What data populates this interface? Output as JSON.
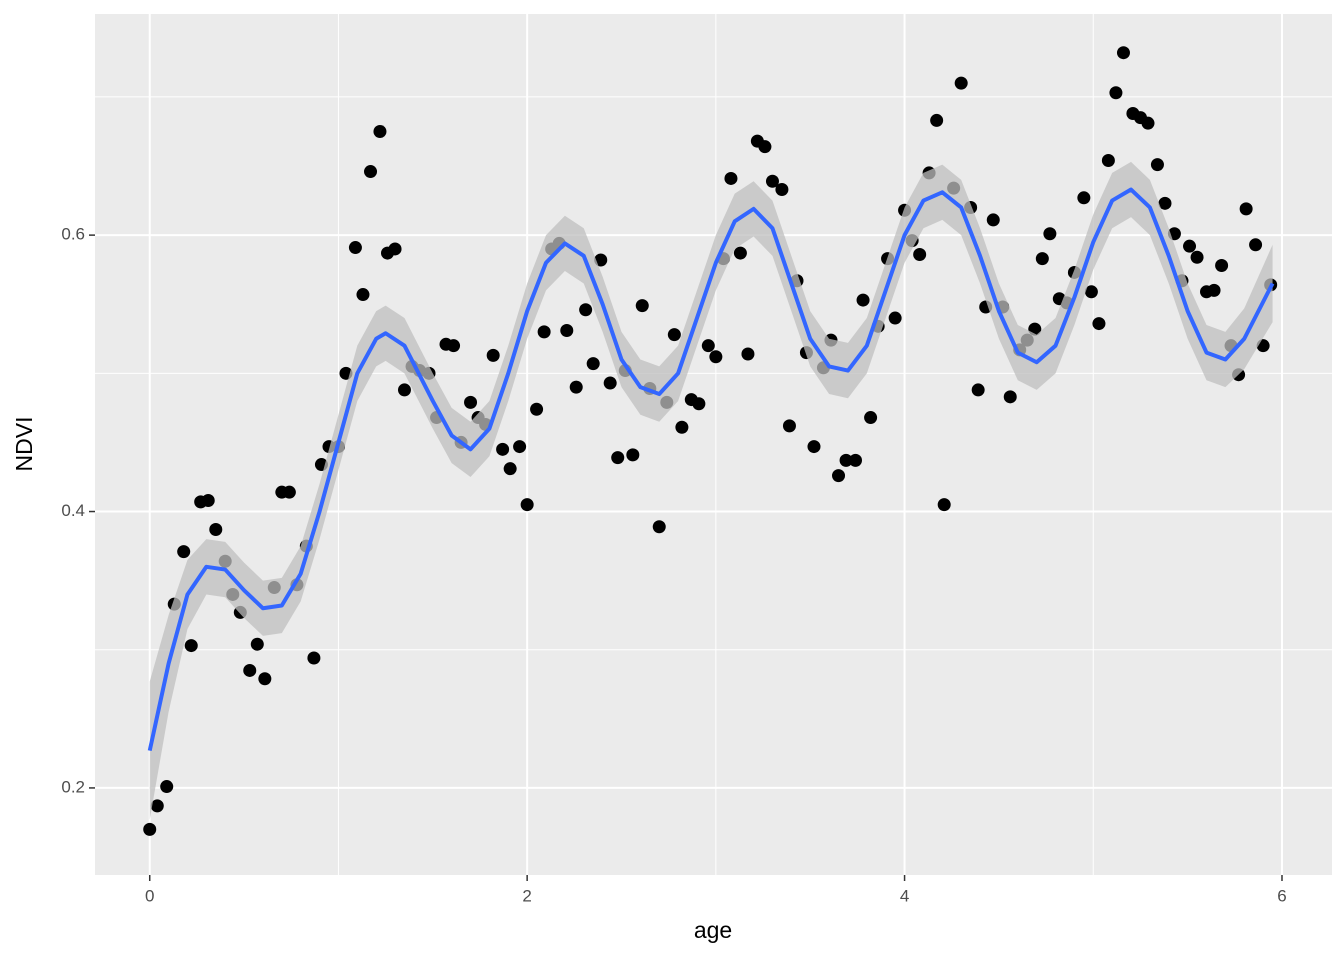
{
  "chart_data": {
    "type": "scatter",
    "x_label": "age",
    "y_label": "NDVI",
    "xlim": [
      -0.29,
      6.265
    ],
    "ylim": [
      0.137,
      0.76
    ],
    "xticks": [
      0,
      2,
      4,
      6
    ],
    "yticks": [
      0.2,
      0.4,
      0.6
    ],
    "xminor": [
      1,
      3,
      5
    ],
    "yminor": [
      0.3,
      0.5,
      0.7
    ],
    "grid": true,
    "color": "#000000",
    "x": [
      0,
      0.04,
      0.09,
      0.13,
      0.18,
      0.22,
      0.27,
      0.31,
      0.35,
      0.4,
      0.44,
      0.48,
      0.53,
      0.57,
      0.61,
      0.66,
      0.7,
      0.74,
      0.78,
      0.83,
      0.87,
      0.91,
      0.95,
      1.0,
      1.04,
      1.09,
      1.13,
      1.17,
      1.22,
      1.26,
      1.3,
      1.35,
      1.39,
      1.43,
      1.48,
      1.52,
      1.57,
      1.61,
      1.65,
      1.7,
      1.74,
      1.78,
      1.82,
      1.87,
      1.91,
      1.96,
      2.0,
      2.05,
      2.09,
      2.13,
      2.17,
      2.21,
      2.26,
      2.31,
      2.35,
      2.39,
      2.44,
      2.48,
      2.52,
      2.56,
      2.61,
      2.65,
      2.7,
      2.74,
      2.78,
      2.82,
      2.87,
      2.91,
      2.96,
      3.0,
      3.04,
      3.08,
      3.13,
      3.17,
      3.22,
      3.26,
      3.3,
      3.35,
      3.39,
      3.43,
      3.48,
      3.52,
      3.57,
      3.61,
      3.65,
      3.69,
      3.74,
      3.78,
      3.82,
      3.86,
      3.91,
      3.95,
      4.0,
      4.04,
      4.08,
      4.13,
      4.17,
      4.21,
      4.26,
      4.3,
      4.35,
      4.39,
      4.43,
      4.47,
      4.52,
      4.56,
      4.61,
      4.65,
      4.69,
      4.73,
      4.77,
      4.82,
      4.86,
      4.9,
      4.95,
      4.99,
      5.03,
      5.08,
      5.12,
      5.16,
      5.21,
      5.25,
      5.29,
      5.34,
      5.38,
      5.43,
      5.47,
      5.51,
      5.55,
      5.6,
      5.64,
      5.68,
      5.73,
      5.77,
      5.81,
      5.86,
      5.9,
      5.94
    ],
    "values": [
      0.17,
      0.187,
      0.201,
      0.333,
      0.371,
      0.303,
      0.407,
      0.408,
      0.387,
      0.364,
      0.34,
      0.327,
      0.285,
      0.304,
      0.279,
      0.345,
      0.414,
      0.414,
      0.347,
      0.375,
      0.294,
      0.434,
      0.447,
      0.447,
      0.5,
      0.591,
      0.557,
      0.646,
      0.675,
      0.587,
      0.59,
      0.488,
      0.505,
      0.502,
      0.5,
      0.468,
      0.521,
      0.52,
      0.45,
      0.479,
      0.468,
      0.463,
      0.513,
      0.445,
      0.431,
      0.447,
      0.405,
      0.474,
      0.53,
      0.59,
      0.594,
      0.531,
      0.49,
      0.546,
      0.507,
      0.582,
      0.493,
      0.439,
      0.502,
      0.441,
      0.549,
      0.489,
      0.389,
      0.479,
      0.528,
      0.461,
      0.481,
      0.478,
      0.52,
      0.512,
      0.583,
      0.641,
      0.587,
      0.514,
      0.668,
      0.664,
      0.639,
      0.633,
      0.462,
      0.567,
      0.515,
      0.447,
      0.504,
      0.524,
      0.426,
      0.437,
      0.437,
      0.553,
      0.468,
      0.534,
      0.583,
      0.54,
      0.618,
      0.596,
      0.586,
      0.645,
      0.683,
      0.405,
      0.634,
      0.71,
      0.62,
      0.488,
      0.548,
      0.611,
      0.548,
      0.483,
      0.517,
      0.524,
      0.532,
      0.583,
      0.601,
      0.554,
      0.551,
      0.573,
      0.627,
      0.559,
      0.536,
      0.654,
      0.703,
      0.732,
      0.688,
      0.685,
      0.681,
      0.651,
      0.623,
      0.601,
      0.567,
      0.592,
      0.584,
      0.559,
      0.56,
      0.578,
      0.52,
      0.499,
      0.619,
      0.593,
      0.52,
      0.564
    ],
    "smooth": {
      "color": "#3366ff",
      "band_color": "#bfbfbf",
      "x": [
        0,
        0.1,
        0.2,
        0.3,
        0.4,
        0.5,
        0.6,
        0.7,
        0.8,
        0.9,
        1.0,
        1.1,
        1.2,
        1.25,
        1.35,
        1.5,
        1.6,
        1.7,
        1.8,
        1.9,
        2.0,
        2.1,
        2.2,
        2.3,
        2.4,
        2.5,
        2.6,
        2.7,
        2.8,
        2.9,
        3.0,
        3.1,
        3.2,
        3.3,
        3.4,
        3.5,
        3.6,
        3.7,
        3.8,
        3.9,
        4.0,
        4.1,
        4.2,
        4.3,
        4.4,
        4.5,
        4.6,
        4.7,
        4.8,
        4.9,
        5.0,
        5.1,
        5.2,
        5.3,
        5.4,
        5.5,
        5.6,
        5.7,
        5.8,
        5.95
      ],
      "fit": [
        0.227,
        0.29,
        0.34,
        0.36,
        0.358,
        0.343,
        0.33,
        0.332,
        0.355,
        0.4,
        0.45,
        0.5,
        0.525,
        0.529,
        0.52,
        0.48,
        0.455,
        0.445,
        0.46,
        0.5,
        0.545,
        0.58,
        0.594,
        0.585,
        0.55,
        0.51,
        0.49,
        0.485,
        0.5,
        0.54,
        0.58,
        0.61,
        0.619,
        0.605,
        0.565,
        0.525,
        0.505,
        0.502,
        0.52,
        0.56,
        0.6,
        0.625,
        0.631,
        0.62,
        0.585,
        0.545,
        0.515,
        0.508,
        0.52,
        0.555,
        0.595,
        0.625,
        0.633,
        0.62,
        0.585,
        0.545,
        0.515,
        0.51,
        0.525,
        0.565
      ],
      "lower": [
        0.177,
        0.255,
        0.315,
        0.34,
        0.338,
        0.323,
        0.31,
        0.312,
        0.335,
        0.38,
        0.43,
        0.48,
        0.505,
        0.509,
        0.5,
        0.46,
        0.435,
        0.425,
        0.44,
        0.48,
        0.525,
        0.56,
        0.574,
        0.565,
        0.53,
        0.49,
        0.47,
        0.465,
        0.48,
        0.52,
        0.56,
        0.59,
        0.599,
        0.585,
        0.545,
        0.505,
        0.485,
        0.482,
        0.5,
        0.54,
        0.58,
        0.605,
        0.611,
        0.6,
        0.565,
        0.525,
        0.495,
        0.488,
        0.5,
        0.535,
        0.575,
        0.605,
        0.613,
        0.6,
        0.565,
        0.525,
        0.495,
        0.49,
        0.503,
        0.537
      ],
      "upper": [
        0.277,
        0.325,
        0.365,
        0.38,
        0.378,
        0.363,
        0.35,
        0.352,
        0.375,
        0.42,
        0.47,
        0.52,
        0.545,
        0.549,
        0.54,
        0.5,
        0.475,
        0.465,
        0.48,
        0.52,
        0.565,
        0.6,
        0.614,
        0.605,
        0.57,
        0.53,
        0.51,
        0.505,
        0.52,
        0.56,
        0.6,
        0.63,
        0.639,
        0.625,
        0.585,
        0.545,
        0.525,
        0.522,
        0.54,
        0.58,
        0.62,
        0.645,
        0.651,
        0.64,
        0.605,
        0.565,
        0.535,
        0.528,
        0.54,
        0.575,
        0.615,
        0.645,
        0.653,
        0.64,
        0.605,
        0.565,
        0.535,
        0.53,
        0.547,
        0.593
      ]
    }
  }
}
